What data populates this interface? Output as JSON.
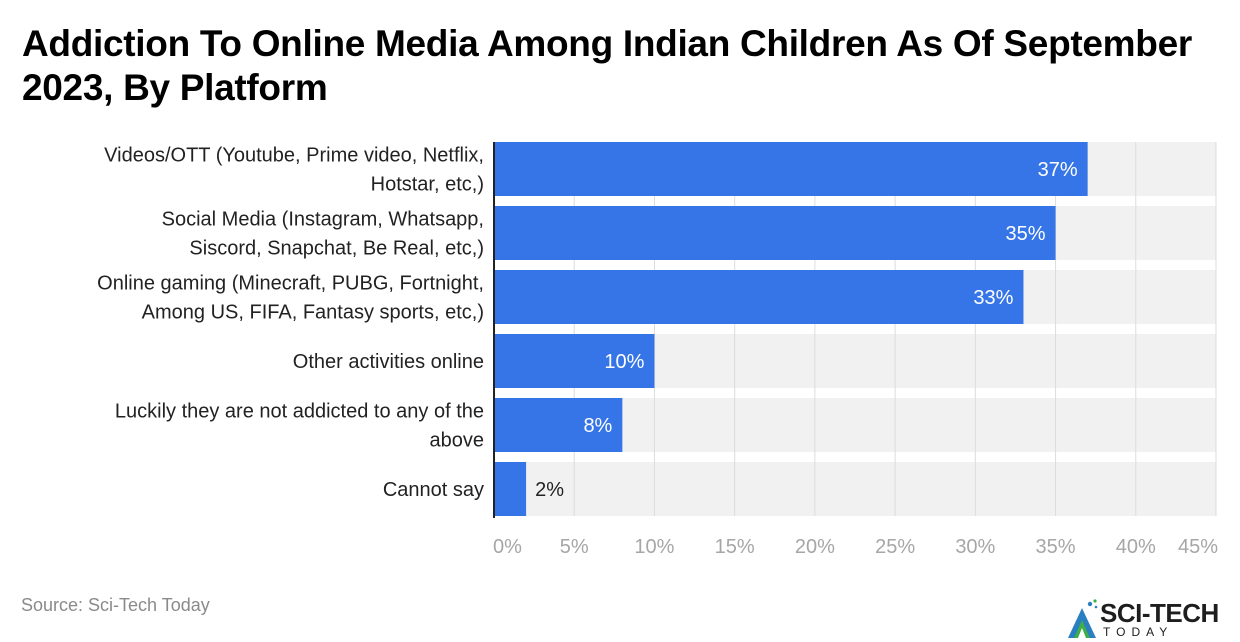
{
  "title": "Addiction To Online Media Among Indian Children As Of September 2023, By Platform",
  "source": "Source: Sci-Tech Today",
  "logo": {
    "name": "SCI-TECH",
    "subtitle": "TODAY",
    "icon": "sci-tech-logo-icon"
  },
  "colors": {
    "bar": "#3575E8",
    "track": "#F1F1F1",
    "grid": "#DCDCDC",
    "axis": "#222222",
    "tick_label": "#A6A6A6",
    "category_label": "#222222",
    "value_label_inside": "#FFFFFF",
    "value_label_outside": "#222222"
  },
  "chart_data": {
    "type": "bar",
    "orientation": "horizontal",
    "title": "Addiction To Online Media Among Indian Children As Of September 2023, By Platform",
    "xlabel": "",
    "ylabel": "",
    "categories": [
      [
        "Videos/OTT (Youtube, Prime video, Netflix,",
        "Hotstar, etc,)"
      ],
      [
        "Social Media (Instagram, Whatsapp,",
        "Siscord, Snapchat, Be Real, etc,)"
      ],
      [
        "Online gaming (Minecraft, PUBG, Fortnight,",
        "Among US, FIFA, Fantasy sports, etc,)"
      ],
      [
        "Other activities online"
      ],
      [
        "Luckily they are not addicted to any of the",
        "above"
      ],
      [
        "Cannot say"
      ]
    ],
    "values": [
      37,
      35,
      33,
      10,
      8,
      2
    ],
    "value_labels": [
      "37%",
      "35%",
      "33%",
      "10%",
      "8%",
      "2%"
    ],
    "xlim": [
      0,
      45
    ],
    "xticks": [
      0,
      5,
      10,
      15,
      20,
      25,
      30,
      35,
      40,
      45
    ],
    "xtick_labels": [
      "0%",
      "5%",
      "10%",
      "15%",
      "20%",
      "25%",
      "30%",
      "35%",
      "40%",
      "45%"
    ],
    "grid": true,
    "legend": "none"
  }
}
